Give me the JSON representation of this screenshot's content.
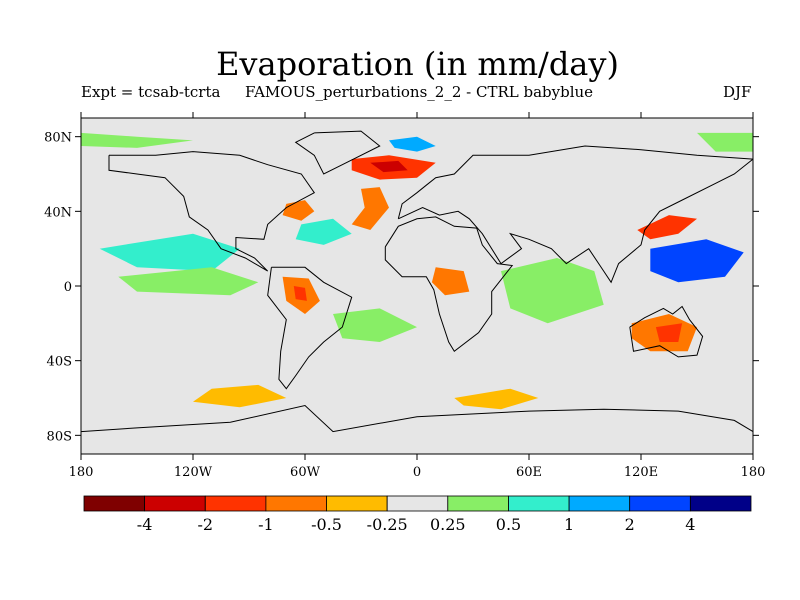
{
  "title": "Evaporation (in mm/day)",
  "subtitle_left": "Expt = tcsab-tcrta",
  "subtitle_center": "FAMOUS_perturbations_2_2 - CTRL babyblue",
  "subtitle_right": "DJF",
  "map": {
    "projection": "cylindrical equidistant",
    "lon_range": [
      -180,
      180
    ],
    "lat_range": [
      -90,
      90
    ],
    "lat_ticks": [
      {
        "value": 80,
        "label": "80N"
      },
      {
        "value": 40,
        "label": "40N"
      },
      {
        "value": 0,
        "label": "0"
      },
      {
        "value": -40,
        "label": "40S"
      },
      {
        "value": -80,
        "label": "80S"
      }
    ],
    "lon_ticks": [
      {
        "value": -180,
        "label": "180"
      },
      {
        "value": -120,
        "label": "120W"
      },
      {
        "value": -60,
        "label": "60W"
      },
      {
        "value": 0,
        "label": "0"
      },
      {
        "value": 60,
        "label": "60E"
      },
      {
        "value": 120,
        "label": "120E"
      },
      {
        "value": 180,
        "label": "180"
      }
    ],
    "background_color": "#e6e6e6"
  },
  "colorbar": {
    "colors": [
      "#7f0000",
      "#cc0000",
      "#ff3300",
      "#ff7700",
      "#ffbb00",
      "#e6e6e6",
      "#88ee66",
      "#33eecc",
      "#00aaff",
      "#0044ff",
      "#000088"
    ],
    "boundary_labels": [
      "-4",
      "-2",
      "-1",
      "-0.5",
      "-0.25",
      "0.25",
      "0.5",
      "1",
      "2",
      "4"
    ]
  },
  "regions": [
    {
      "name": "north-atlantic-decrease",
      "color": "#ff3300",
      "points": [
        [
          -35,
          68
        ],
        [
          -15,
          70
        ],
        [
          10,
          66
        ],
        [
          0,
          58
        ],
        [
          -20,
          57
        ],
        [
          -35,
          62
        ]
      ]
    },
    {
      "name": "north-atlantic-decrease-core",
      "color": "#cc0000",
      "points": [
        [
          -25,
          66
        ],
        [
          -10,
          67
        ],
        [
          -5,
          62
        ],
        [
          -18,
          61
        ]
      ]
    },
    {
      "name": "greenland-sea-increase",
      "color": "#00aaff",
      "points": [
        [
          -15,
          78
        ],
        [
          0,
          80
        ],
        [
          10,
          75
        ],
        [
          0,
          72
        ],
        [
          -12,
          74
        ]
      ]
    },
    {
      "name": "gulf-stream-decrease",
      "color": "#ff7700",
      "points": [
        [
          -70,
          44
        ],
        [
          -60,
          46
        ],
        [
          -55,
          40
        ],
        [
          -62,
          35
        ],
        [
          -72,
          38
        ]
      ]
    },
    {
      "name": "eastern-atlantic-decrease",
      "color": "#ff7700",
      "points": [
        [
          -30,
          52
        ],
        [
          -20,
          53
        ],
        [
          -15,
          42
        ],
        [
          -25,
          30
        ],
        [
          -35,
          33
        ],
        [
          -28,
          42
        ]
      ]
    },
    {
      "name": "west-atlantic-increase",
      "color": "#33eecc",
      "points": [
        [
          -62,
          33
        ],
        [
          -45,
          36
        ],
        [
          -35,
          28
        ],
        [
          -50,
          22
        ],
        [
          -65,
          25
        ]
      ]
    },
    {
      "name": "tropical-pacific-increase",
      "color": "#33eecc",
      "points": [
        [
          -170,
          20
        ],
        [
          -120,
          28
        ],
        [
          -95,
          20
        ],
        [
          -110,
          8
        ],
        [
          -150,
          10
        ]
      ]
    },
    {
      "name": "east-pacific-increase",
      "color": "#88ee66",
      "points": [
        [
          -160,
          5
        ],
        [
          -110,
          10
        ],
        [
          -85,
          2
        ],
        [
          -100,
          -5
        ],
        [
          -150,
          -3
        ]
      ]
    },
    {
      "name": "amazon-decrease",
      "color": "#ff7700",
      "points": [
        [
          -72,
          5
        ],
        [
          -58,
          4
        ],
        [
          -52,
          -8
        ],
        [
          -60,
          -15
        ],
        [
          -70,
          -8
        ]
      ]
    },
    {
      "name": "amazon-decrease-core",
      "color": "#ff3300",
      "points": [
        [
          -66,
          0
        ],
        [
          -60,
          -1
        ],
        [
          -59,
          -8
        ],
        [
          -65,
          -7
        ]
      ]
    },
    {
      "name": "south-atlantic-increase",
      "color": "#88ee66",
      "points": [
        [
          -45,
          -15
        ],
        [
          -20,
          -12
        ],
        [
          0,
          -22
        ],
        [
          -20,
          -30
        ],
        [
          -40,
          -28
        ]
      ]
    },
    {
      "name": "west-africa-decrease",
      "color": "#ff7700",
      "points": [
        [
          10,
          10
        ],
        [
          25,
          8
        ],
        [
          28,
          -3
        ],
        [
          15,
          -5
        ],
        [
          8,
          2
        ]
      ]
    },
    {
      "name": "indian-ocean-increase",
      "color": "#88ee66",
      "points": [
        [
          45,
          8
        ],
        [
          75,
          15
        ],
        [
          95,
          8
        ],
        [
          100,
          -10
        ],
        [
          70,
          -20
        ],
        [
          50,
          -12
        ]
      ]
    },
    {
      "name": "west-pacific-strong-increase",
      "color": "#0044ff",
      "points": [
        [
          125,
          20
        ],
        [
          155,
          25
        ],
        [
          175,
          18
        ],
        [
          165,
          5
        ],
        [
          140,
          2
        ],
        [
          125,
          8
        ]
      ]
    },
    {
      "name": "kuroshio-decrease",
      "color": "#ff3300",
      "points": [
        [
          118,
          30
        ],
        [
          135,
          38
        ],
        [
          150,
          36
        ],
        [
          140,
          28
        ],
        [
          125,
          25
        ]
      ]
    },
    {
      "name": "australia-decrease",
      "color": "#ff7700",
      "points": [
        [
          115,
          -20
        ],
        [
          135,
          -15
        ],
        [
          150,
          -22
        ],
        [
          145,
          -35
        ],
        [
          125,
          -35
        ],
        [
          115,
          -28
        ]
      ]
    },
    {
      "name": "australia-decrease-core",
      "color": "#ff3300",
      "points": [
        [
          128,
          -22
        ],
        [
          142,
          -20
        ],
        [
          140,
          -30
        ],
        [
          130,
          -30
        ]
      ]
    },
    {
      "name": "southern-ocean-decrease",
      "color": "#ffbb00",
      "points": [
        [
          -110,
          -55
        ],
        [
          -85,
          -53
        ],
        [
          -70,
          -60
        ],
        [
          -95,
          -65
        ],
        [
          -120,
          -62
        ]
      ]
    },
    {
      "name": "southern-ocean-decrease-2",
      "color": "#ffbb00",
      "points": [
        [
          20,
          -60
        ],
        [
          50,
          -55
        ],
        [
          65,
          -60
        ],
        [
          45,
          -66
        ],
        [
          25,
          -64
        ]
      ]
    },
    {
      "name": "arctic-increase",
      "color": "#88ee66",
      "points": [
        [
          -180,
          82
        ],
        [
          -150,
          80
        ],
        [
          -120,
          78
        ],
        [
          -150,
          74
        ],
        [
          -180,
          75
        ]
      ]
    },
    {
      "name": "arctic-increase-2",
      "color": "#88ee66",
      "points": [
        [
          150,
          82
        ],
        [
          180,
          82
        ],
        [
          180,
          72
        ],
        [
          160,
          72
        ]
      ]
    }
  ],
  "coastlines": [
    {
      "name": "north-america",
      "points": [
        [
          -165,
          70
        ],
        [
          -140,
          70
        ],
        [
          -120,
          72
        ],
        [
          -95,
          70
        ],
        [
          -80,
          65
        ],
        [
          -62,
          60
        ],
        [
          -55,
          50
        ],
        [
          -70,
          42
        ],
        [
          -80,
          33
        ],
        [
          -82,
          25
        ],
        [
          -97,
          26
        ],
        [
          -97,
          20
        ],
        [
          -87,
          15
        ],
        [
          -80,
          8
        ],
        [
          -92,
          15
        ],
        [
          -105,
          20
        ],
        [
          -112,
          30
        ],
        [
          -122,
          37
        ],
        [
          -125,
          48
        ],
        [
          -135,
          58
        ],
        [
          -150,
          60
        ],
        [
          -165,
          62
        ],
        [
          -165,
          70
        ]
      ]
    },
    {
      "name": "greenland",
      "points": [
        [
          -55,
          82
        ],
        [
          -30,
          83
        ],
        [
          -20,
          75
        ],
        [
          -40,
          65
        ],
        [
          -50,
          60
        ],
        [
          -55,
          70
        ],
        [
          -65,
          77
        ],
        [
          -55,
          82
        ]
      ]
    },
    {
      "name": "south-america",
      "points": [
        [
          -78,
          10
        ],
        [
          -60,
          10
        ],
        [
          -50,
          2
        ],
        [
          -35,
          -6
        ],
        [
          -40,
          -22
        ],
        [
          -50,
          -30
        ],
        [
          -58,
          -38
        ],
        [
          -65,
          -48
        ],
        [
          -70,
          -55
        ],
        [
          -74,
          -50
        ],
        [
          -73,
          -35
        ],
        [
          -70,
          -18
        ],
        [
          -80,
          -5
        ],
        [
          -78,
          10
        ]
      ]
    },
    {
      "name": "europe-asia",
      "points": [
        [
          -10,
          36
        ],
        [
          -8,
          44
        ],
        [
          0,
          50
        ],
        [
          5,
          54
        ],
        [
          10,
          58
        ],
        [
          20,
          60
        ],
        [
          30,
          70
        ],
        [
          60,
          70
        ],
        [
          90,
          75
        ],
        [
          120,
          73
        ],
        [
          150,
          70
        ],
        [
          180,
          68
        ],
        [
          170,
          60
        ],
        [
          160,
          55
        ],
        [
          140,
          45
        ],
        [
          130,
          40
        ],
        [
          122,
          30
        ],
        [
          120,
          22
        ],
        [
          108,
          12
        ],
        [
          104,
          2
        ],
        [
          100,
          8
        ],
        [
          92,
          20
        ],
        [
          80,
          12
        ],
        [
          72,
          20
        ],
        [
          60,
          25
        ],
        [
          50,
          28
        ],
        [
          56,
          20
        ],
        [
          45,
          12
        ],
        [
          35,
          28
        ],
        [
          28,
          36
        ],
        [
          22,
          40
        ],
        [
          12,
          38
        ],
        [
          3,
          42
        ],
        [
          -10,
          36
        ]
      ]
    },
    {
      "name": "africa",
      "points": [
        [
          -17,
          21
        ],
        [
          -10,
          32
        ],
        [
          0,
          36
        ],
        [
          10,
          37
        ],
        [
          20,
          32
        ],
        [
          32,
          31
        ],
        [
          35,
          22
        ],
        [
          43,
          12
        ],
        [
          51,
          11
        ],
        [
          40,
          -3
        ],
        [
          40,
          -15
        ],
        [
          33,
          -25
        ],
        [
          20,
          -35
        ],
        [
          17,
          -30
        ],
        [
          12,
          -15
        ],
        [
          9,
          -2
        ],
        [
          5,
          5
        ],
        [
          -8,
          5
        ],
        [
          -17,
          14
        ],
        [
          -17,
          21
        ]
      ]
    },
    {
      "name": "australia",
      "points": [
        [
          114,
          -22
        ],
        [
          122,
          -17
        ],
        [
          132,
          -12
        ],
        [
          137,
          -15
        ],
        [
          142,
          -11
        ],
        [
          146,
          -18
        ],
        [
          153,
          -27
        ],
        [
          150,
          -37
        ],
        [
          140,
          -38
        ],
        [
          130,
          -32
        ],
        [
          116,
          -35
        ],
        [
          114,
          -22
        ]
      ]
    },
    {
      "name": "antarctica",
      "points": [
        [
          -180,
          -78
        ],
        [
          -150,
          -76
        ],
        [
          -100,
          -73
        ],
        [
          -60,
          -64
        ],
        [
          -45,
          -78
        ],
        [
          0,
          -70
        ],
        [
          60,
          -67
        ],
        [
          100,
          -66
        ],
        [
          140,
          -67
        ],
        [
          170,
          -72
        ],
        [
          180,
          -78
        ]
      ]
    }
  ]
}
